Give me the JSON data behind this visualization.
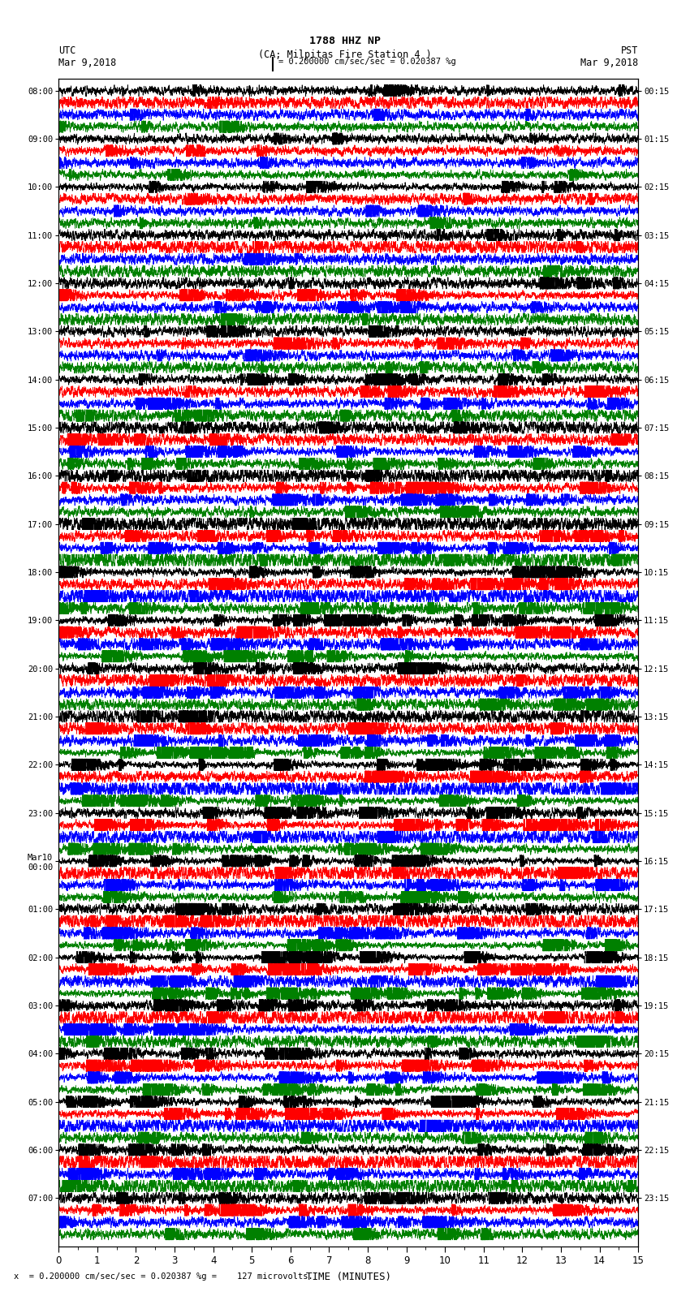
{
  "title_line1": "1788 HHZ NP",
  "title_line2": "(CA; Milpitas Fire Station 4 )",
  "utc_label": "UTC",
  "pst_label": "PST",
  "date_left": "Mar 9,2018",
  "date_right": "Mar 9,2018",
  "scale_text": "= 0.200000 cm/sec/sec = 0.020387 %g",
  "bottom_text": "= 0.200000 cm/sec/sec = 0.020387 %g =    127 microvolts.",
  "xlabel": "TIME (MINUTES)",
  "left_times": [
    "08:00",
    "09:00",
    "10:00",
    "11:00",
    "12:00",
    "13:00",
    "14:00",
    "15:00",
    "16:00",
    "17:00",
    "18:00",
    "19:00",
    "20:00",
    "21:00",
    "22:00",
    "23:00",
    "Mar10\n00:00",
    "01:00",
    "02:00",
    "03:00",
    "04:00",
    "05:00",
    "06:00",
    "07:00"
  ],
  "right_times": [
    "00:15",
    "01:15",
    "02:15",
    "03:15",
    "04:15",
    "05:15",
    "06:15",
    "07:15",
    "08:15",
    "09:15",
    "10:15",
    "11:15",
    "12:15",
    "13:15",
    "14:15",
    "15:15",
    "16:15",
    "17:15",
    "18:15",
    "19:15",
    "20:15",
    "21:15",
    "22:15",
    "23:15"
  ],
  "colors": [
    "black",
    "red",
    "blue",
    "green"
  ],
  "n_rows": 96,
  "n_groups": 24,
  "traces_per_group": 4,
  "xlim": [
    0,
    15
  ],
  "xticks": [
    0,
    1,
    2,
    3,
    4,
    5,
    6,
    7,
    8,
    9,
    10,
    11,
    12,
    13,
    14,
    15
  ],
  "fig_width": 8.5,
  "fig_height": 16.13,
  "dpi": 100,
  "bg_color": "white",
  "noise_seed": 42
}
